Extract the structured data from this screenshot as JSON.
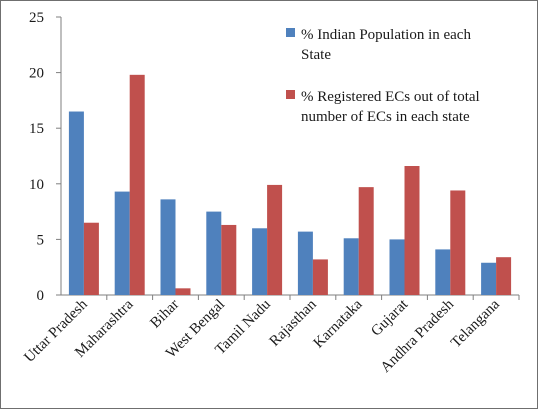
{
  "chart_data": {
    "type": "bar",
    "categories": [
      "Uttar Pradesh",
      "Maharashtra",
      "Bihar",
      "West Bengal",
      "Tamil Nadu",
      "Rajasthan",
      "Karnataka",
      "Gujarat",
      "Andhra Pradesh",
      "Telangana"
    ],
    "series": [
      {
        "name": "% Indian Population in each State",
        "legend_lines": [
          "% Indian Population in each",
          "State"
        ],
        "color": "#4F81BD",
        "values": [
          16.5,
          9.3,
          8.6,
          7.5,
          6.0,
          5.7,
          5.1,
          5.0,
          4.1,
          2.9
        ]
      },
      {
        "name": "% Registered ECs out of total number of ECs in each state",
        "legend_lines": [
          "% Registered ECs out of total",
          "number of ECs in each state"
        ],
        "color": "#C0504D",
        "values": [
          6.5,
          19.8,
          0.6,
          6.3,
          9.9,
          3.2,
          9.7,
          11.6,
          9.4,
          3.4
        ]
      }
    ],
    "yticks": [
      0,
      5,
      10,
      15,
      20,
      25
    ],
    "ylim": [
      0,
      25
    ],
    "grid": false,
    "legend_position": "top-right",
    "title": "",
    "xlabel": "",
    "ylabel": ""
  }
}
